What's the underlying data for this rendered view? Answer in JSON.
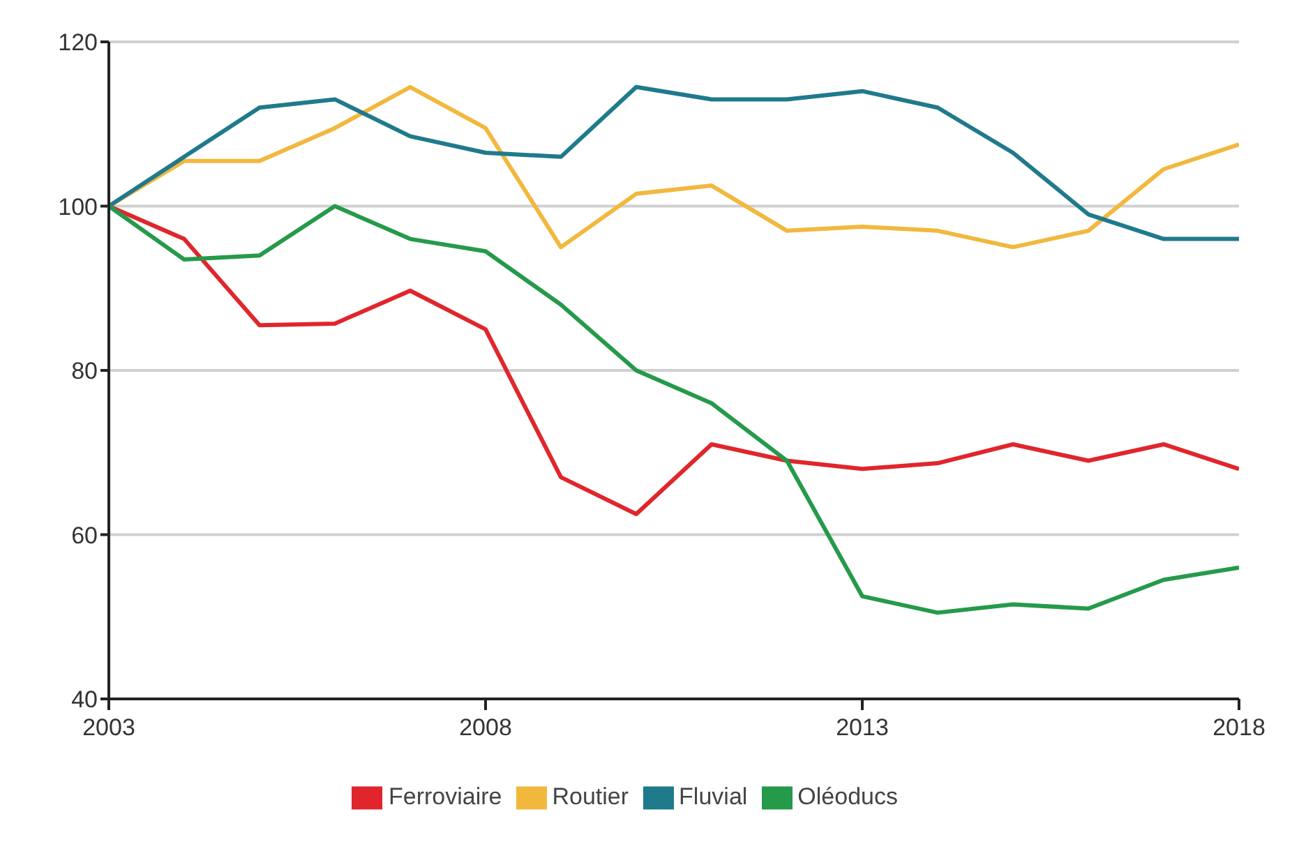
{
  "chart_data": {
    "type": "line",
    "x": [
      2003,
      2004,
      2005,
      2006,
      2007,
      2008,
      2009,
      2010,
      2011,
      2012,
      2013,
      2014,
      2015,
      2016,
      2017,
      2018
    ],
    "series": [
      {
        "name": "Ferroviaire",
        "color": "#e0262c",
        "values": [
          100,
          96,
          85.5,
          85.7,
          89.7,
          85,
          67,
          62.5,
          71,
          69,
          68,
          68.7,
          71,
          69,
          71,
          68
        ]
      },
      {
        "name": "Routier",
        "color": "#f2b83e",
        "values": [
          100,
          105.5,
          105.5,
          109.5,
          114.5,
          109.5,
          95,
          101.5,
          102.5,
          97,
          97.5,
          97,
          95,
          97,
          104.5,
          107.5
        ]
      },
      {
        "name": "Fluvial",
        "color": "#1f7a8c",
        "values": [
          100,
          106,
          112,
          113,
          108.5,
          106.5,
          106,
          114.5,
          113,
          113,
          114,
          112,
          106.5,
          99,
          96,
          96
        ]
      },
      {
        "name": "Oléoducs",
        "color": "#259a4a",
        "values": [
          100,
          93.5,
          94,
          100,
          96,
          94.5,
          88,
          80,
          76,
          69,
          52.5,
          50.5,
          51.5,
          51,
          54.5,
          56
        ]
      }
    ],
    "xlim": [
      2003,
      2018
    ],
    "xticks": [
      2003,
      2008,
      2013,
      2018
    ],
    "ylim": [
      40,
      120
    ],
    "yticks": [
      40,
      60,
      80,
      100,
      120
    ],
    "grid": "y",
    "legend": "bottom",
    "marker": "none",
    "line_style": "solid"
  }
}
